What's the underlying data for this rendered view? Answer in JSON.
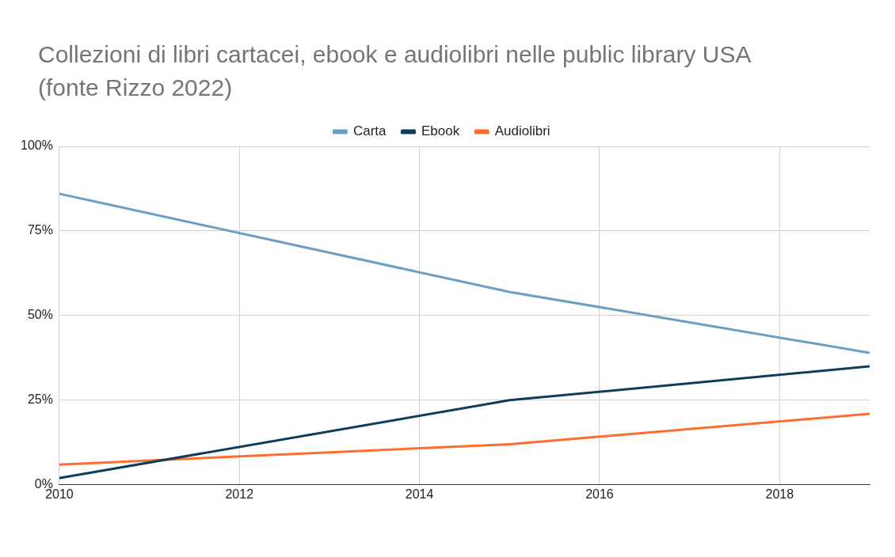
{
  "chart_data": {
    "type": "line",
    "title": "Collezioni di libri cartacei, ebook e audiolibri nelle public library USA (fonte Rizzo 2022)",
    "series": [
      {
        "name": "Carta",
        "color": "#6a9fc2",
        "x": [
          2010,
          2015,
          2019
        ],
        "values": [
          86,
          57,
          39
        ]
      },
      {
        "name": "Ebook",
        "color": "#0e3d5c",
        "x": [
          2010,
          2015,
          2019
        ],
        "values": [
          2,
          25,
          35
        ]
      },
      {
        "name": "Audiolibri",
        "color": "#ff6d2e",
        "x": [
          2010,
          2015,
          2019
        ],
        "values": [
          6,
          12,
          21
        ]
      }
    ],
    "xlim": [
      2010,
      2019
    ],
    "xticks": [
      2010,
      2012,
      2014,
      2016,
      2018
    ],
    "ylim": [
      0,
      100
    ],
    "yticks": [
      {
        "value": 0,
        "label": "0%"
      },
      {
        "value": 25,
        "label": "25%"
      },
      {
        "value": 50,
        "label": "50%"
      },
      {
        "value": 75,
        "label": "75%"
      },
      {
        "value": 100,
        "label": "100%"
      }
    ],
    "grid": true,
    "legend": "top",
    "marker": "none",
    "line_style": "solid"
  }
}
